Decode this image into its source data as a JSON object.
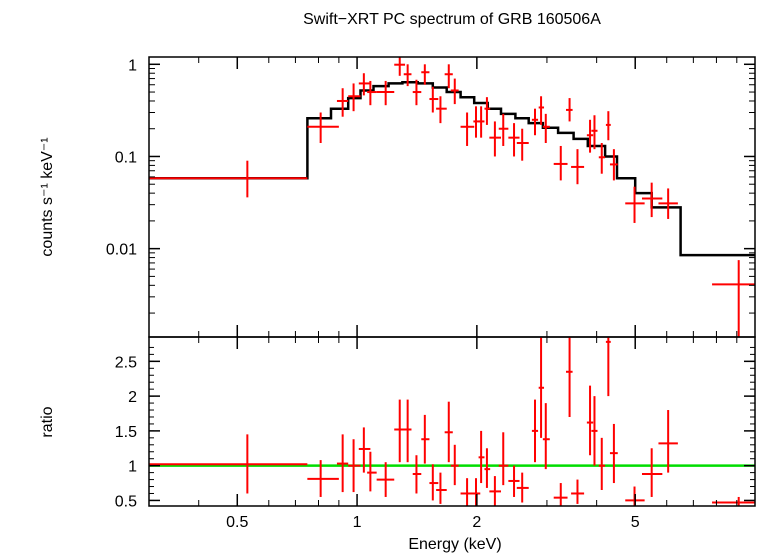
{
  "chart_data": [
    {
      "type": "line",
      "title": "Swift−XRT PC spectrum of GRB 160506A",
      "ylabel": "counts s⁻¹ keV⁻¹",
      "xlabel": "",
      "x_scale": "log",
      "y_scale": "log",
      "xlim": [
        0.3,
        10
      ],
      "ylim": [
        0.0011,
        1.2
      ],
      "y_ticks": [
        {
          "v": 1,
          "label": "1"
        },
        {
          "v": 0.1,
          "label": "0.1"
        },
        {
          "v": 0.01,
          "label": "0.01"
        }
      ],
      "model": {
        "color": "#000000",
        "steps": [
          [
            0.3,
            0.75,
            0.058
          ],
          [
            0.75,
            0.86,
            0.26
          ],
          [
            0.86,
            0.95,
            0.33
          ],
          [
            0.95,
            1.02,
            0.43
          ],
          [
            1.02,
            1.1,
            0.52
          ],
          [
            1.1,
            1.2,
            0.58
          ],
          [
            1.2,
            1.3,
            0.62
          ],
          [
            1.3,
            1.42,
            0.64
          ],
          [
            1.42,
            1.55,
            0.62
          ],
          [
            1.55,
            1.68,
            0.56
          ],
          [
            1.68,
            1.82,
            0.5
          ],
          [
            1.82,
            1.97,
            0.44
          ],
          [
            1.97,
            2.13,
            0.38
          ],
          [
            2.13,
            2.3,
            0.33
          ],
          [
            2.3,
            2.5,
            0.29
          ],
          [
            2.5,
            2.7,
            0.26
          ],
          [
            2.7,
            2.93,
            0.23
          ],
          [
            2.93,
            3.2,
            0.205
          ],
          [
            3.2,
            3.5,
            0.18
          ],
          [
            3.5,
            3.8,
            0.155
          ],
          [
            3.8,
            4.2,
            0.13
          ],
          [
            4.2,
            4.5,
            0.1
          ],
          [
            4.5,
            5.0,
            0.058
          ],
          [
            5.0,
            5.5,
            0.04
          ],
          [
            5.5,
            6.5,
            0.028
          ],
          [
            6.5,
            10,
            0.0085
          ]
        ]
      },
      "series": [
        {
          "color": "#ff0000",
          "points": [
            {
              "x": 0.53,
              "xlo": 0.3,
              "xhi": 0.75,
              "y": 0.058,
              "ylo": 0.036,
              "yhi": 0.09
            },
            {
              "x": 0.81,
              "xlo": 0.75,
              "xhi": 0.9,
              "y": 0.21,
              "ylo": 0.14,
              "yhi": 0.3
            },
            {
              "x": 0.92,
              "xlo": 0.89,
              "xhi": 0.95,
              "y": 0.4,
              "ylo": 0.27,
              "yhi": 0.55
            },
            {
              "x": 0.98,
              "xlo": 0.95,
              "xhi": 1.02,
              "y": 0.45,
              "ylo": 0.31,
              "yhi": 0.62
            },
            {
              "x": 1.04,
              "xlo": 1.01,
              "xhi": 1.08,
              "y": 0.62,
              "ylo": 0.46,
              "yhi": 0.8
            },
            {
              "x": 1.08,
              "xlo": 1.06,
              "xhi": 1.12,
              "y": 0.5,
              "ylo": 0.36,
              "yhi": 0.66
            },
            {
              "x": 1.18,
              "xlo": 1.12,
              "xhi": 1.24,
              "y": 0.5,
              "ylo": 0.36,
              "yhi": 0.66
            },
            {
              "x": 1.28,
              "xlo": 1.24,
              "xhi": 1.32,
              "y": 0.99,
              "ylo": 0.75,
              "yhi": 1.2
            },
            {
              "x": 1.34,
              "xlo": 1.31,
              "xhi": 1.37,
              "y": 0.78,
              "ylo": 0.58,
              "yhi": 1.0
            },
            {
              "x": 1.41,
              "xlo": 1.38,
              "xhi": 1.45,
              "y": 0.5,
              "ylo": 0.36,
              "yhi": 0.68
            },
            {
              "x": 1.48,
              "xlo": 1.45,
              "xhi": 1.52,
              "y": 0.82,
              "ylo": 0.6,
              "yhi": 1.0
            },
            {
              "x": 1.55,
              "xlo": 1.52,
              "xhi": 1.6,
              "y": 0.42,
              "ylo": 0.3,
              "yhi": 0.57
            },
            {
              "x": 1.62,
              "xlo": 1.58,
              "xhi": 1.68,
              "y": 0.33,
              "ylo": 0.23,
              "yhi": 0.45
            },
            {
              "x": 1.7,
              "xlo": 1.66,
              "xhi": 1.74,
              "y": 0.78,
              "ylo": 0.55,
              "yhi": 1.0
            },
            {
              "x": 1.76,
              "xlo": 1.72,
              "xhi": 1.8,
              "y": 0.52,
              "ylo": 0.37,
              "yhi": 0.7
            },
            {
              "x": 1.89,
              "xlo": 1.82,
              "xhi": 1.97,
              "y": 0.21,
              "ylo": 0.13,
              "yhi": 0.3
            },
            {
              "x": 1.99,
              "xlo": 1.96,
              "xhi": 2.04,
              "y": 0.24,
              "ylo": 0.16,
              "yhi": 0.35
            },
            {
              "x": 2.05,
              "xlo": 2.02,
              "xhi": 2.09,
              "y": 0.24,
              "ylo": 0.16,
              "yhi": 0.35
            },
            {
              "x": 2.12,
              "xlo": 2.09,
              "xhi": 2.16,
              "y": 0.33,
              "ylo": 0.22,
              "yhi": 0.44
            },
            {
              "x": 2.22,
              "xlo": 2.15,
              "xhi": 2.3,
              "y": 0.16,
              "ylo": 0.1,
              "yhi": 0.24
            },
            {
              "x": 2.33,
              "xlo": 2.27,
              "xhi": 2.4,
              "y": 0.2,
              "ylo": 0.13,
              "yhi": 0.29
            },
            {
              "x": 2.48,
              "xlo": 2.4,
              "xhi": 2.56,
              "y": 0.16,
              "ylo": 0.1,
              "yhi": 0.23
            },
            {
              "x": 2.6,
              "xlo": 2.52,
              "xhi": 2.7,
              "y": 0.14,
              "ylo": 0.09,
              "yhi": 0.2
            },
            {
              "x": 2.8,
              "xlo": 2.75,
              "xhi": 2.85,
              "y": 0.25,
              "ylo": 0.17,
              "yhi": 0.33
            },
            {
              "x": 2.9,
              "xlo": 2.86,
              "xhi": 2.95,
              "y": 0.34,
              "ylo": 0.22,
              "yhi": 0.45
            },
            {
              "x": 2.98,
              "xlo": 2.93,
              "xhi": 3.05,
              "y": 0.21,
              "ylo": 0.14,
              "yhi": 0.29
            },
            {
              "x": 3.25,
              "xlo": 3.12,
              "xhi": 3.38,
              "y": 0.083,
              "ylo": 0.055,
              "yhi": 0.13
            },
            {
              "x": 3.42,
              "xlo": 3.35,
              "xhi": 3.48,
              "y": 0.32,
              "ylo": 0.24,
              "yhi": 0.43
            },
            {
              "x": 3.58,
              "xlo": 3.45,
              "xhi": 3.72,
              "y": 0.077,
              "ylo": 0.05,
              "yhi": 0.12
            },
            {
              "x": 3.85,
              "xlo": 3.78,
              "xhi": 3.92,
              "y": 0.17,
              "ylo": 0.11,
              "yhi": 0.25
            },
            {
              "x": 3.95,
              "xlo": 3.88,
              "xhi": 4.02,
              "y": 0.19,
              "ylo": 0.12,
              "yhi": 0.28
            },
            {
              "x": 4.12,
              "xlo": 4.05,
              "xhi": 4.2,
              "y": 0.098,
              "ylo": 0.065,
              "yhi": 0.14
            },
            {
              "x": 4.28,
              "xlo": 4.22,
              "xhi": 4.34,
              "y": 0.22,
              "ylo": 0.15,
              "yhi": 0.31
            },
            {
              "x": 4.42,
              "xlo": 4.32,
              "xhi": 4.52,
              "y": 0.082,
              "ylo": 0.055,
              "yhi": 0.12
            },
            {
              "x": 4.98,
              "xlo": 4.72,
              "xhi": 5.28,
              "y": 0.031,
              "ylo": 0.019,
              "yhi": 0.047
            },
            {
              "x": 5.5,
              "xlo": 5.2,
              "xhi": 5.85,
              "y": 0.035,
              "ylo": 0.022,
              "yhi": 0.052
            },
            {
              "x": 6.05,
              "xlo": 5.72,
              "xhi": 6.4,
              "y": 0.031,
              "ylo": 0.021,
              "yhi": 0.045
            },
            {
              "x": 9.1,
              "xlo": 7.8,
              "xhi": 10,
              "y": 0.0041,
              "ylo": 0.0011,
              "yhi": 0.0075
            }
          ]
        }
      ]
    },
    {
      "type": "line",
      "xlabel": "Energy (keV)",
      "ylabel": "ratio",
      "x_scale": "log",
      "xlim": [
        0.3,
        10
      ],
      "ylim": [
        0.42,
        2.85
      ],
      "x_ticks": [
        {
          "v": 0.5,
          "label": "0.5"
        },
        {
          "v": 1,
          "label": "1"
        },
        {
          "v": 2,
          "label": "2"
        },
        {
          "v": 5,
          "label": "5"
        }
      ],
      "y_ticks": [
        {
          "v": 0.5,
          "label": "0.5"
        },
        {
          "v": 1,
          "label": "1"
        },
        {
          "v": 1.5,
          "label": "1.5"
        },
        {
          "v": 2,
          "label": "2"
        },
        {
          "v": 2.5,
          "label": "2.5"
        }
      ],
      "reference_line": {
        "y": 1,
        "color": "#00dd00"
      },
      "series": [
        {
          "color": "#ff0000",
          "points": [
            {
              "x": 0.53,
              "xlo": 0.3,
              "xhi": 0.75,
              "y": 1.02,
              "ylo": 0.6,
              "yhi": 1.45
            },
            {
              "x": 0.81,
              "xlo": 0.75,
              "xhi": 0.9,
              "y": 0.81,
              "ylo": 0.55,
              "yhi": 1.08
            },
            {
              "x": 0.92,
              "xlo": 0.89,
              "xhi": 0.95,
              "y": 1.03,
              "ylo": 0.62,
              "yhi": 1.45
            },
            {
              "x": 0.98,
              "xlo": 0.95,
              "xhi": 1.02,
              "y": 1.0,
              "ylo": 0.62,
              "yhi": 1.38
            },
            {
              "x": 1.04,
              "xlo": 1.01,
              "xhi": 1.08,
              "y": 1.24,
              "ylo": 0.9,
              "yhi": 1.55
            },
            {
              "x": 1.08,
              "xlo": 1.06,
              "xhi": 1.12,
              "y": 0.9,
              "ylo": 0.63,
              "yhi": 1.2
            },
            {
              "x": 1.18,
              "xlo": 1.12,
              "xhi": 1.24,
              "y": 0.8,
              "ylo": 0.55,
              "yhi": 1.05
            },
            {
              "x": 1.28,
              "xlo": 1.24,
              "xhi": 1.32,
              "y": 1.52,
              "ylo": 1.05,
              "yhi": 1.95
            },
            {
              "x": 1.34,
              "xlo": 1.31,
              "xhi": 1.37,
              "y": 1.52,
              "ylo": 1.05,
              "yhi": 1.95
            },
            {
              "x": 1.41,
              "xlo": 1.38,
              "xhi": 1.45,
              "y": 0.88,
              "ylo": 0.6,
              "yhi": 1.15
            },
            {
              "x": 1.48,
              "xlo": 1.45,
              "xhi": 1.52,
              "y": 1.38,
              "ylo": 1.03,
              "yhi": 1.73
            },
            {
              "x": 1.55,
              "xlo": 1.52,
              "xhi": 1.6,
              "y": 0.75,
              "ylo": 0.5,
              "yhi": 1.02
            },
            {
              "x": 1.62,
              "xlo": 1.58,
              "xhi": 1.68,
              "y": 0.65,
              "ylo": 0.45,
              "yhi": 0.9
            },
            {
              "x": 1.7,
              "xlo": 1.66,
              "xhi": 1.74,
              "y": 1.48,
              "ylo": 1.05,
              "yhi": 1.92
            },
            {
              "x": 1.76,
              "xlo": 1.72,
              "xhi": 1.8,
              "y": 1.0,
              "ylo": 0.72,
              "yhi": 1.3
            },
            {
              "x": 1.89,
              "xlo": 1.82,
              "xhi": 1.97,
              "y": 0.6,
              "ylo": 0.42,
              "yhi": 0.82
            },
            {
              "x": 1.99,
              "xlo": 1.96,
              "xhi": 2.04,
              "y": 0.6,
              "ylo": 0.42,
              "yhi": 0.82
            },
            {
              "x": 2.05,
              "xlo": 2.02,
              "xhi": 2.09,
              "y": 1.12,
              "ylo": 0.75,
              "yhi": 1.5
            },
            {
              "x": 2.12,
              "xlo": 2.09,
              "xhi": 2.16,
              "y": 0.95,
              "ylo": 0.68,
              "yhi": 1.25
            },
            {
              "x": 2.22,
              "xlo": 2.15,
              "xhi": 2.3,
              "y": 0.63,
              "ylo": 0.42,
              "yhi": 0.85
            },
            {
              "x": 2.33,
              "xlo": 2.27,
              "xhi": 2.4,
              "y": 1.0,
              "ylo": 0.72,
              "yhi": 1.48
            },
            {
              "x": 2.48,
              "xlo": 2.4,
              "xhi": 2.56,
              "y": 0.78,
              "ylo": 0.55,
              "yhi": 1.0
            },
            {
              "x": 2.6,
              "xlo": 2.52,
              "xhi": 2.7,
              "y": 0.68,
              "ylo": 0.47,
              "yhi": 0.9
            },
            {
              "x": 2.8,
              "xlo": 2.75,
              "xhi": 2.85,
              "y": 1.5,
              "ylo": 1.05,
              "yhi": 1.95
            },
            {
              "x": 2.9,
              "xlo": 2.86,
              "xhi": 2.95,
              "y": 2.12,
              "ylo": 1.4,
              "yhi": 2.85
            },
            {
              "x": 2.98,
              "xlo": 2.93,
              "xhi": 3.05,
              "y": 1.38,
              "ylo": 0.95,
              "yhi": 1.9
            },
            {
              "x": 3.25,
              "xlo": 3.12,
              "xhi": 3.38,
              "y": 0.54,
              "ylo": 0.42,
              "yhi": 0.75
            },
            {
              "x": 3.42,
              "xlo": 3.35,
              "xhi": 3.48,
              "y": 2.35,
              "ylo": 1.7,
              "yhi": 2.85
            },
            {
              "x": 3.58,
              "xlo": 3.45,
              "xhi": 3.72,
              "y": 0.6,
              "ylo": 0.45,
              "yhi": 0.8
            },
            {
              "x": 3.85,
              "xlo": 3.78,
              "xhi": 3.92,
              "y": 1.62,
              "ylo": 1.15,
              "yhi": 2.15
            },
            {
              "x": 3.95,
              "xlo": 3.88,
              "xhi": 4.02,
              "y": 1.5,
              "ylo": 1.0,
              "yhi": 2.0
            },
            {
              "x": 4.12,
              "xlo": 4.05,
              "xhi": 4.2,
              "y": 1.0,
              "ylo": 0.65,
              "yhi": 1.4
            },
            {
              "x": 4.28,
              "xlo": 4.22,
              "xhi": 4.34,
              "y": 2.78,
              "ylo": 2.0,
              "yhi": 2.85
            },
            {
              "x": 4.42,
              "xlo": 4.32,
              "xhi": 4.52,
              "y": 1.18,
              "ylo": 0.75,
              "yhi": 1.6
            },
            {
              "x": 4.98,
              "xlo": 4.72,
              "xhi": 5.28,
              "y": 0.5,
              "ylo": 0.42,
              "yhi": 0.7
            },
            {
              "x": 5.5,
              "xlo": 5.2,
              "xhi": 5.85,
              "y": 0.88,
              "ylo": 0.55,
              "yhi": 1.25
            },
            {
              "x": 6.05,
              "xlo": 5.72,
              "xhi": 6.4,
              "y": 1.32,
              "ylo": 0.9,
              "yhi": 1.8
            },
            {
              "x": 9.1,
              "xlo": 7.8,
              "xhi": 10,
              "y": 0.47,
              "ylo": 0.42,
              "yhi": 0.55
            }
          ]
        }
      ]
    }
  ]
}
